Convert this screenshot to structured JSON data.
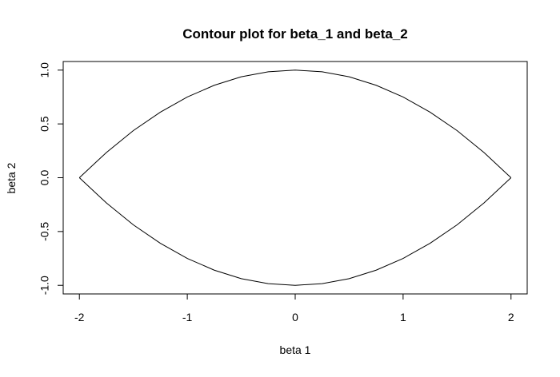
{
  "chart_data": {
    "type": "line",
    "title": "Contour plot for beta_1 and beta_2",
    "xlabel": "beta 1",
    "ylabel": "beta 2",
    "xlim": [
      -2.15,
      2.15
    ],
    "ylim": [
      -1.08,
      1.08
    ],
    "x_ticks": [
      -2,
      -1,
      0,
      1,
      2
    ],
    "x_tick_labels": [
      "-2",
      "-1",
      "0",
      "1",
      "2"
    ],
    "y_ticks": [
      -1.0,
      -0.5,
      0.0,
      0.5,
      1.0
    ],
    "y_tick_labels": [
      "-1.0",
      "-0.5",
      "0.0",
      "0.5",
      "1.0"
    ],
    "grid": false,
    "legend": "none",
    "line_color": "#000000",
    "series": [
      {
        "x": [
          -2,
          -1.75,
          -1.5,
          -1.25,
          -1,
          -0.75,
          -0.5,
          -0.25,
          0,
          0.25,
          0.5,
          0.75,
          1,
          1.25,
          1.5,
          1.75,
          2
        ],
        "y": [
          0,
          0.234,
          0.438,
          0.609,
          0.75,
          0.859,
          0.938,
          0.984,
          1,
          0.984,
          0.938,
          0.859,
          0.75,
          0.609,
          0.438,
          0.234,
          0
        ]
      },
      {
        "x": [
          -2,
          -1.75,
          -1.5,
          -1.25,
          -1,
          -0.75,
          -0.5,
          -0.25,
          0,
          0.25,
          0.5,
          0.75,
          1,
          1.25,
          1.5,
          1.75,
          2
        ],
        "y": [
          0,
          -0.234,
          -0.438,
          -0.609,
          -0.75,
          -0.859,
          -0.938,
          -0.984,
          -1,
          -0.984,
          -0.938,
          -0.859,
          -0.75,
          -0.609,
          -0.438,
          -0.234,
          0
        ]
      }
    ]
  }
}
